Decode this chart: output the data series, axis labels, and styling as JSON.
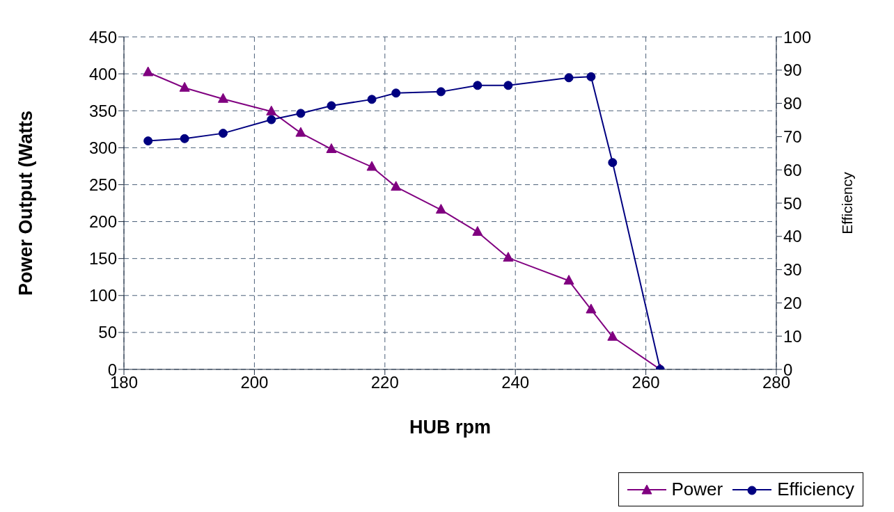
{
  "chart_data": {
    "type": "line",
    "xlabel": "HUB rpm",
    "ylabel": "Power Output (Watts",
    "y2label": "Efficiency",
    "x": [
      183.7,
      189.3,
      195.2,
      202.6,
      207.1,
      211.8,
      218.0,
      221.7,
      228.6,
      234.2,
      238.9,
      248.2,
      251.6,
      254.9,
      262.2
    ],
    "series": [
      {
        "name": "Power",
        "color": "#800080",
        "marker": "triangle",
        "values": [
          402,
          381,
          366,
          349,
          320,
          298,
          274,
          247,
          216,
          186,
          151,
          120,
          81,
          44,
          0
        ]
      },
      {
        "name": "Efficiency",
        "color": "#000080",
        "marker": "circle",
        "axis": "y2",
        "values": [
          68.7,
          69.4,
          71.0,
          75.1,
          77.0,
          79.3,
          81.2,
          83.1,
          83.5,
          85.4,
          85.4,
          87.7,
          88.0,
          62.2,
          0
        ]
      }
    ],
    "xlim": [
      180,
      280
    ],
    "xticks": [
      180,
      200,
      220,
      240,
      260,
      280
    ],
    "ylim": [
      0,
      450
    ],
    "yticks": [
      0,
      50,
      100,
      150,
      200,
      250,
      300,
      350,
      400,
      450
    ],
    "y2lim": [
      0,
      100
    ],
    "y2ticks": [
      0,
      10,
      20,
      30,
      40,
      50,
      60,
      70,
      80,
      90,
      100
    ],
    "grid": true,
    "line_style": "solid",
    "legend": "bottom right"
  }
}
